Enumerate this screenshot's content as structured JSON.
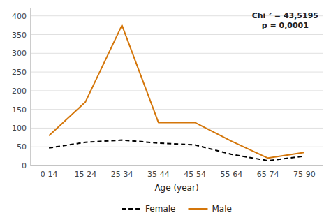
{
  "chart_data": {
    "type": "line",
    "categories": [
      "0-14",
      "15-24",
      "25-34",
      "35-44",
      "45-54",
      "55-64",
      "65-74",
      "75-90"
    ],
    "series": [
      {
        "name": "Female",
        "color": "#000000",
        "line_style": "dashed",
        "values": [
          47,
          62,
          68,
          60,
          55,
          30,
          13,
          25
        ]
      },
      {
        "name": "Male",
        "color": "#D4760A",
        "line_style": "solid",
        "values": [
          80,
          170,
          375,
          115,
          115,
          65,
          20,
          35
        ]
      }
    ],
    "xlabel": "Age (year)",
    "annotations": [
      "Chi ² = 43,5195",
      "p = 0,0001"
    ],
    "ylim": [
      0,
      420
    ],
    "yticks": [
      0,
      50,
      100,
      150,
      200,
      250,
      300,
      350,
      400
    ],
    "grid": true,
    "legend": "bottom"
  }
}
